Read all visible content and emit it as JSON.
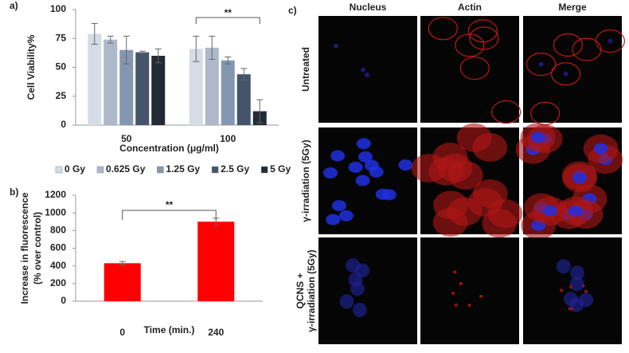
{
  "chart_data": [
    {
      "type": "bar",
      "panel_label": "a)",
      "ylabel": "Cell Viability%",
      "xlabel": "Concentration (μg/ml)",
      "categories": [
        "50",
        "100"
      ],
      "series": [
        {
          "name": "0 Gy",
          "color": "#d6dce5",
          "values": [
            79,
            66
          ],
          "errors": [
            9,
            11
          ]
        },
        {
          "name": "0.625 Gy",
          "color": "#adb9ca",
          "values": [
            74,
            67
          ],
          "errors": [
            3,
            10
          ]
        },
        {
          "name": "1.25 Gy",
          "color": "#8497b0",
          "values": [
            65,
            56
          ],
          "errors": [
            12,
            3
          ]
        },
        {
          "name": "2.5 Gy",
          "color": "#44546a",
          "values": [
            63,
            44
          ],
          "errors": [
            1,
            5
          ]
        },
        {
          "name": "5 Gy",
          "color": "#222a35",
          "values": [
            60,
            12
          ],
          "errors": [
            6,
            10
          ]
        }
      ],
      "ylim": [
        0,
        100
      ],
      "yticks": [
        0,
        25,
        50,
        75,
        100
      ],
      "annotation": "**"
    },
    {
      "type": "bar",
      "panel_label": "b)",
      "ylabel": [
        "Increase in fluorescence",
        "(% over control)"
      ],
      "xlabel": "Time (min.)",
      "categories": [
        "0",
        "240"
      ],
      "values": [
        430,
        900
      ],
      "errors": [
        20,
        40
      ],
      "color": "#ff0000",
      "ylim": [
        0,
        1200
      ],
      "yticks": [
        0,
        200,
        400,
        600,
        800,
        1000,
        1200
      ],
      "annotation": "**"
    }
  ],
  "panel_c": {
    "panel_label": "c)",
    "columns": [
      "Nucleus",
      "Actin",
      "Merge"
    ],
    "rows": [
      [
        "Untreated"
      ],
      [
        "γ-irradiation (5Gy)"
      ],
      [
        "QCNS +",
        "γ-irradiation (5Gy)"
      ]
    ]
  }
}
